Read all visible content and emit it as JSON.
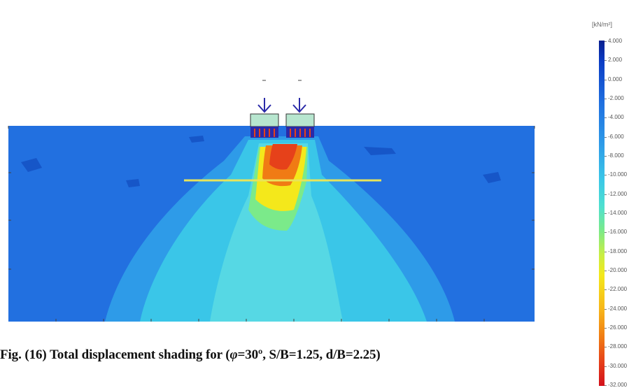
{
  "caption": {
    "prefix": "Fig. (16) Total displacement shading for (",
    "phi": "φ",
    "suffix": "=30º, S/B=1.25, d/B=2.25)"
  },
  "legend": {
    "unit": "[kN/m²]",
    "ticks": [
      "4.000",
      "2.000",
      "0.000",
      "-2.000",
      "-4.000",
      "-6.000",
      "-8.000",
      "-10.000",
      "-12.000",
      "-14.000",
      "-16.000",
      "-18.000",
      "-20.000",
      "-22.000",
      "-24.000",
      "-26.000",
      "-28.000",
      "-30.000",
      "-32.000"
    ]
  },
  "colors": {
    "soil_background": "#1f6fe0",
    "outer_zone": "#2e9be8",
    "mid_zone": "#3ac6e8",
    "inner_zone": "#4ee0d0",
    "hot_yellow": "#f4e81b",
    "hot_orange": "#f07b14",
    "hot_red": "#e6411a",
    "reinforcement": "#e8e45a",
    "footing": "#b7e6cf",
    "load_arrow": "#2a2aa8"
  }
}
